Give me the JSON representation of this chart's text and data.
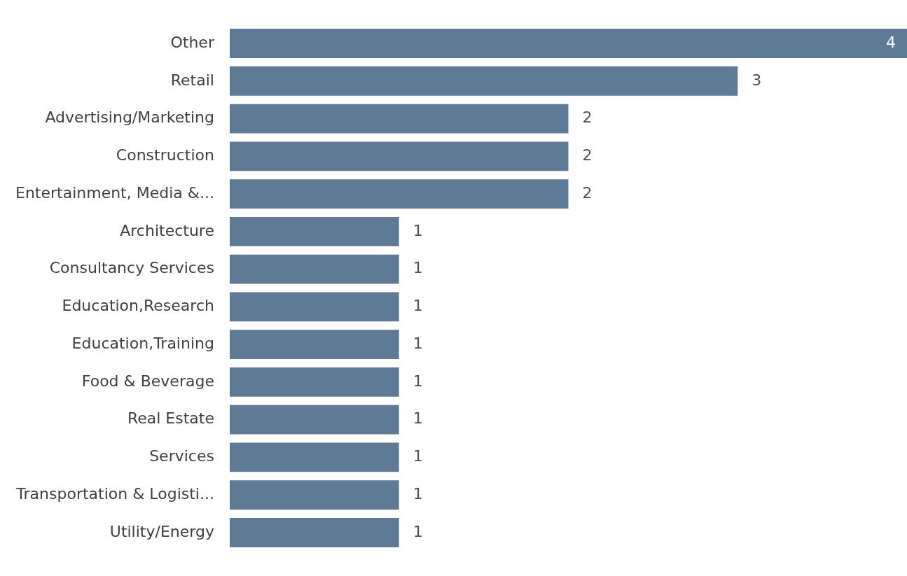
{
  "chart_data": {
    "type": "bar",
    "orientation": "horizontal",
    "categories": [
      "Other",
      "Retail",
      "Advertising/Marketing",
      "Construction",
      "Entertainment, Media &...",
      "Architecture",
      "Consultancy Services",
      "Education,Research",
      "Education,Training",
      "Food & Beverage",
      "Real Estate",
      "Services",
      "Transportation & Logisti...",
      "Utility/Energy"
    ],
    "values": [
      4,
      3,
      2,
      2,
      2,
      1,
      1,
      1,
      1,
      1,
      1,
      1,
      1,
      1
    ],
    "color": "#5f7a94",
    "data_labels": true,
    "grid": false,
    "legend": false,
    "tick_labels": "y"
  }
}
